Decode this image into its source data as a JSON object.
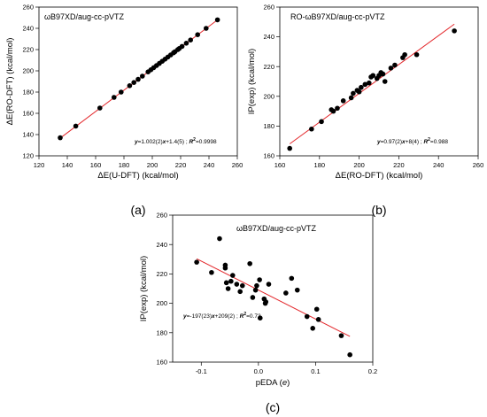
{
  "chart_data": [
    {
      "id": "a",
      "type": "scatter",
      "panel_label": "(a)",
      "title": "ωB97XD/aug-cc-pVTZ",
      "xlabel": "ΔE(U-DFT)  (kcal/mol)",
      "ylabel": "ΔE(RO-DFT)  (kcal/mol)",
      "xlim": [
        120,
        260
      ],
      "ylim": [
        120,
        260
      ],
      "xticks": [
        120,
        140,
        160,
        180,
        200,
        220,
        240,
        260
      ],
      "yticks": [
        120,
        140,
        160,
        180,
        200,
        220,
        240,
        260
      ],
      "xtick_labels": [
        "120",
        "140",
        "160",
        "180",
        "200",
        "220",
        "240",
        "260"
      ],
      "ytick_labels": [
        "120",
        "140",
        "160",
        "180",
        "200",
        "220",
        "240",
        "260"
      ],
      "fit_label": "y=1.002(2)x+1.4(5) ; R²=0.9998",
      "fit": {
        "slope": 1.002,
        "intercept": 1.4,
        "x_range": [
          134,
          246
        ]
      },
      "points": [
        [
          135,
          137
        ],
        [
          146,
          148
        ],
        [
          163,
          165
        ],
        [
          173,
          175
        ],
        [
          178,
          180
        ],
        [
          184,
          186
        ],
        [
          187,
          189
        ],
        [
          190,
          192
        ],
        [
          193,
          195
        ],
        [
          197,
          199
        ],
        [
          199,
          201
        ],
        [
          201,
          203
        ],
        [
          203,
          205
        ],
        [
          205,
          207
        ],
        [
          207,
          209
        ],
        [
          209,
          211
        ],
        [
          211,
          213
        ],
        [
          213,
          215
        ],
        [
          215,
          217
        ],
        [
          216,
          218
        ],
        [
          218,
          220
        ],
        [
          219,
          221
        ],
        [
          221,
          223
        ],
        [
          224,
          226
        ],
        [
          227,
          229
        ],
        [
          232,
          234
        ],
        [
          238,
          240
        ],
        [
          246,
          248
        ]
      ]
    },
    {
      "id": "b",
      "type": "scatter",
      "panel_label": "(b)",
      "title": "RO-ωB97XD/aug-cc-pVTZ",
      "xlabel": "ΔE(RO-DFT)  (kcal/mol)",
      "ylabel": "IP(exp)  (kcal/mol)",
      "xlim": [
        160,
        260
      ],
      "ylim": [
        160,
        260
      ],
      "xticks": [
        160,
        180,
        200,
        220,
        240,
        260
      ],
      "yticks": [
        160,
        180,
        200,
        220,
        240,
        260
      ],
      "xtick_labels": [
        "160",
        "180",
        "200",
        "220",
        "240",
        "260"
      ],
      "ytick_labels": [
        "160",
        "180",
        "200",
        "220",
        "240",
        "260"
      ],
      "fit_label": "y=0.97(2)x+8(4) ; R²=0.988",
      "fit": {
        "slope": 0.97,
        "intercept": 8,
        "x_range": [
          165,
          248
        ]
      },
      "points": [
        [
          165,
          165
        ],
        [
          176,
          178
        ],
        [
          181,
          183
        ],
        [
          186,
          191
        ],
        [
          187,
          190
        ],
        [
          189,
          192
        ],
        [
          192,
          197
        ],
        [
          196,
          199
        ],
        [
          197,
          202
        ],
        [
          199,
          204
        ],
        [
          200,
          203
        ],
        [
          201,
          206
        ],
        [
          203,
          208
        ],
        [
          205,
          209
        ],
        [
          206,
          213
        ],
        [
          207,
          214
        ],
        [
          209,
          212
        ],
        [
          210,
          214
        ],
        [
          211,
          216
        ],
        [
          212,
          215
        ],
        [
          213,
          210
        ],
        [
          216,
          219
        ],
        [
          218,
          221
        ],
        [
          222,
          226
        ],
        [
          223,
          228
        ],
        [
          229,
          228
        ],
        [
          248,
          244
        ]
      ]
    },
    {
      "id": "c",
      "type": "scatter",
      "panel_label": "(c)",
      "title": "ωB97XD/aug-cc-pVTZ",
      "xlabel": "pEDA  (e)",
      "ylabel": "IP(exp)  (kcal/mol)",
      "xlim": [
        -0.15,
        0.2
      ],
      "ylim": [
        160,
        260
      ],
      "xticks": [
        -0.1,
        0.0,
        0.1,
        0.2
      ],
      "yticks": [
        160,
        180,
        200,
        220,
        240,
        260
      ],
      "xtick_labels": [
        "-0.1",
        "0.0",
        "0.1",
        "0.2"
      ],
      "ytick_labels": [
        "160",
        "180",
        "200",
        "220",
        "240",
        "260"
      ],
      "fit_label": "y=-197(23)x+209(2) ; R²=0.73",
      "fit": {
        "slope": -197,
        "intercept": 209,
        "x_range": [
          -0.108,
          0.16
        ]
      },
      "points": [
        [
          -0.108,
          228
        ],
        [
          -0.082,
          221
        ],
        [
          -0.068,
          244
        ],
        [
          -0.058,
          226
        ],
        [
          -0.058,
          224
        ],
        [
          -0.056,
          214
        ],
        [
          -0.053,
          210
        ],
        [
          -0.048,
          215
        ],
        [
          -0.045,
          219
        ],
        [
          -0.038,
          213
        ],
        [
          -0.032,
          208
        ],
        [
          -0.028,
          212
        ],
        [
          -0.015,
          227
        ],
        [
          -0.01,
          204
        ],
        [
          -0.005,
          209
        ],
        [
          -0.003,
          212
        ],
        [
          0.002,
          216
        ],
        [
          0.003,
          190
        ],
        [
          0.01,
          203
        ],
        [
          0.012,
          200
        ],
        [
          0.013,
          201
        ],
        [
          0.018,
          213
        ],
        [
          0.048,
          207
        ],
        [
          0.058,
          217
        ],
        [
          0.068,
          209
        ],
        [
          0.085,
          191
        ],
        [
          0.095,
          183
        ],
        [
          0.102,
          196
        ],
        [
          0.105,
          189
        ],
        [
          0.145,
          178
        ],
        [
          0.16,
          165
        ]
      ]
    }
  ]
}
